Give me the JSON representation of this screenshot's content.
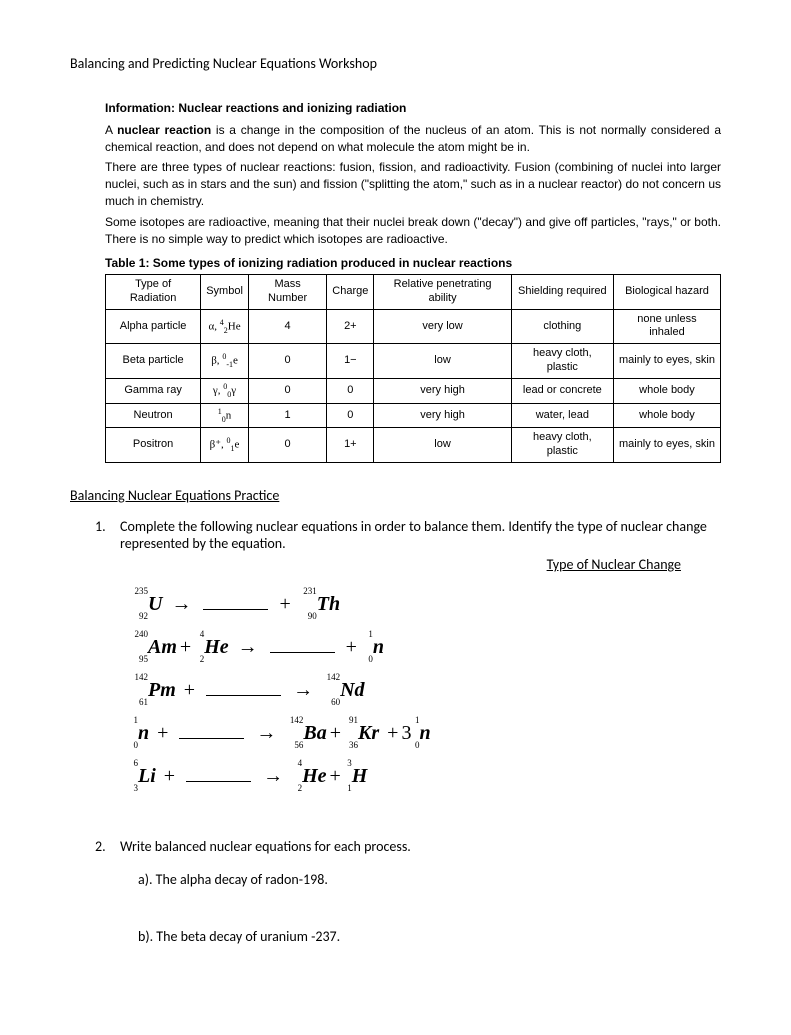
{
  "doc": {
    "title": "Balancing and Predicting Nuclear Equations Workshop"
  },
  "info": {
    "heading": "Information: Nuclear reactions and ionizing radiation",
    "p1a": "A ",
    "p1b": "nuclear reaction",
    "p1c": " is a change in the composition of the nucleus of an atom. This is not normally considered a chemical reaction, and does not depend on what molecule the atom might be in.",
    "p2": "There are three types of nuclear reactions: fusion, fission, and radioactivity. Fusion (combining of nuclei into larger nuclei, such as in stars and the sun) and fission (\"splitting the atom,\" such as in a nuclear reactor) do not concern us much in chemistry.",
    "p3": "Some isotopes are radioactive, meaning that their nuclei break down (\"decay\") and give off particles, \"rays,\" or both. There is no simple way to predict which isotopes are radioactive."
  },
  "table": {
    "title": "Table 1: Some types of ionizing radiation produced in nuclear reactions",
    "headers": [
      "Type of Radiation",
      "Symbol",
      "Mass Number",
      "Charge",
      "Relative penetrating ability",
      "Shielding required",
      "Biological hazard"
    ],
    "rows": [
      {
        "type": "Alpha particle",
        "sym_prefix": "α, ",
        "mass": "4",
        "at": "2",
        "el": "He",
        "massnum": "4",
        "charge": "2+",
        "pen": "very low",
        "shield": "clothing",
        "bio": "none unless inhaled"
      },
      {
        "type": "Beta particle",
        "sym_prefix": "β, ",
        "mass": "0",
        "at": "-1",
        "el": "e",
        "massnum": "0",
        "charge": "1−",
        "pen": "low",
        "shield": "heavy cloth, plastic",
        "bio": "mainly to eyes, skin"
      },
      {
        "type": "Gamma ray",
        "sym_prefix": "γ, ",
        "mass": "0",
        "at": "0",
        "el": "γ",
        "massnum": "0",
        "charge": "0",
        "pen": "very high",
        "shield": "lead or concrete",
        "bio": "whole body"
      },
      {
        "type": "Neutron",
        "sym_prefix": "",
        "mass": "1",
        "at": "0",
        "el": "n",
        "massnum": "1",
        "charge": "0",
        "pen": "very high",
        "shield": "water, lead",
        "bio": "whole body"
      },
      {
        "type": "Positron",
        "sym_prefix": "β⁺, ",
        "mass": "0",
        "at": "1",
        "el": "e",
        "massnum": "0",
        "charge": "1+",
        "pen": "low",
        "shield": "heavy cloth, plastic",
        "bio": "mainly to eyes, skin"
      }
    ]
  },
  "practice": {
    "heading": "Balancing Nuclear Equations Practice",
    "q1": "Complete the following nuclear equations in order to balance them.  Identify the type of nuclear change represented by the equation.",
    "type_label": "Type of Nuclear Change",
    "q2": "Write balanced nuclear equations for each process.",
    "q2a": "a).   The alpha decay of radon-198.",
    "q2b": "b).   The beta decay of uranium -237.",
    "num1": "1.",
    "num2": "2."
  },
  "eq": {
    "e1": {
      "n1_m": "235",
      "n1_a": "92",
      "n1_s": "U",
      "n2_m": "231",
      "n2_a": "90",
      "n2_s": "Th"
    },
    "e2": {
      "n1_m": "240",
      "n1_a": "95",
      "n1_s": "Am",
      "n2_m": "4",
      "n2_a": "2",
      "n2_s": "He",
      "n3_m": "1",
      "n3_a": "0",
      "n3_s": "n"
    },
    "e3": {
      "n1_m": "142",
      "n1_a": "61",
      "n1_s": "Pm",
      "n2_m": "142",
      "n2_a": "60",
      "n2_s": "Nd"
    },
    "e4": {
      "n1_m": "1",
      "n1_a": "0",
      "n1_s": "n",
      "n2_m": "142",
      "n2_a": "56",
      "n2_s": "Ba",
      "n3_m": "91",
      "n3_a": "36",
      "n3_s": "Kr",
      "n4_c": "3",
      "n4_m": "1",
      "n4_a": "0",
      "n4_s": "n"
    },
    "e5": {
      "n1_m": "6",
      "n1_a": "3",
      "n1_s": "Li",
      "n2_m": "4",
      "n2_a": "2",
      "n2_s": "He",
      "n3_m": "3",
      "n3_a": "1",
      "n3_s": "H"
    }
  }
}
